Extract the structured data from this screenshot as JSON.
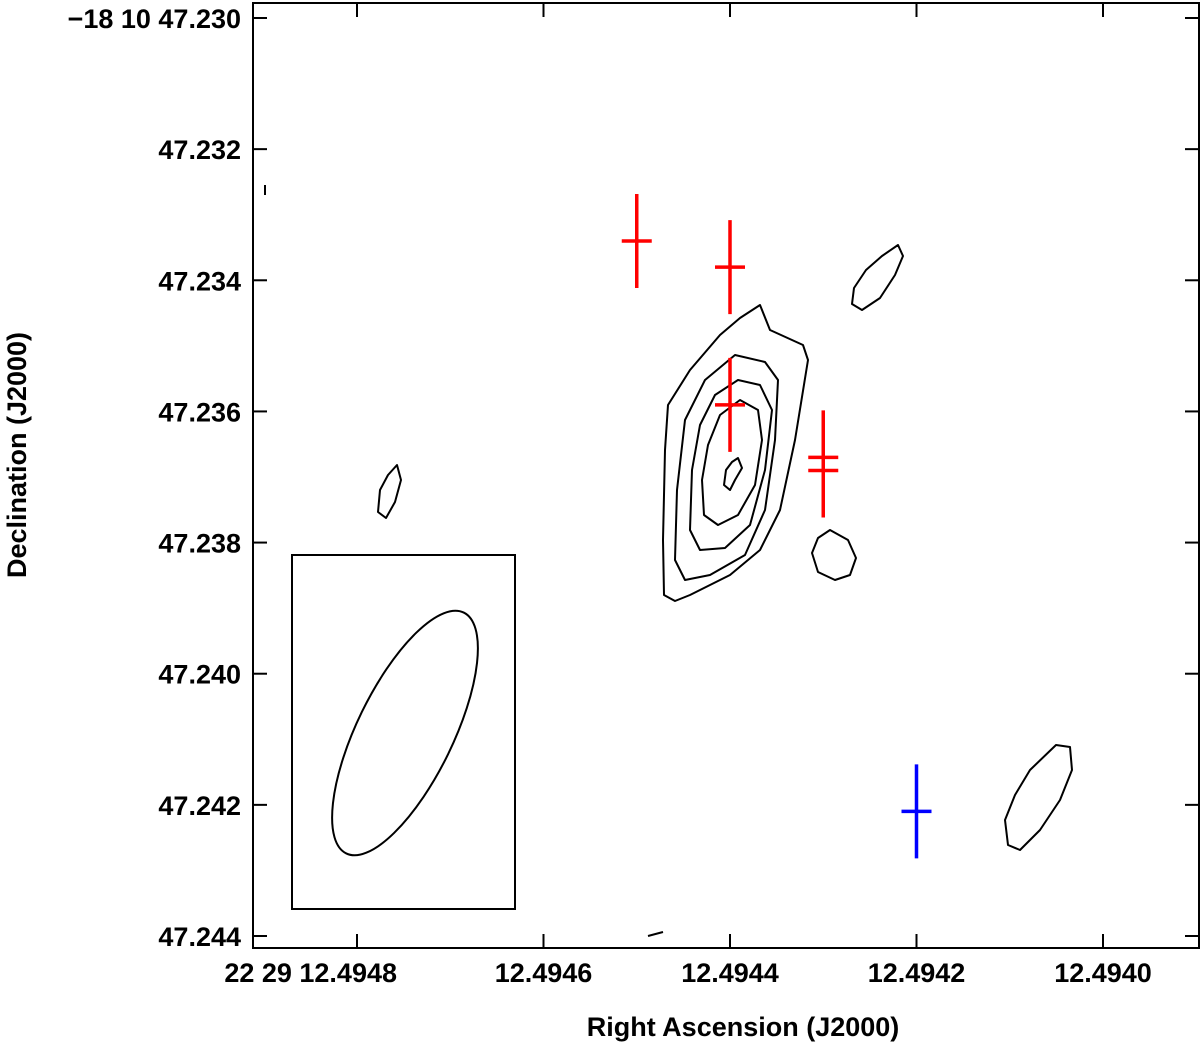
{
  "colors": {
    "red_markers": "#ff0000",
    "blue_marker": "#0000ff",
    "contours": "#000000"
  },
  "chart_data": {
    "type": "contour",
    "xlabel": "Right Ascension (J2000)",
    "ylabel": "Declination (J2000)",
    "x_ticks": [
      {
        "value": 12.4948,
        "label": "22 29 12.4948"
      },
      {
        "value": 12.4946,
        "label": "12.4946"
      },
      {
        "value": 12.4944,
        "label": "12.4944"
      },
      {
        "value": 12.4942,
        "label": "12.4942"
      },
      {
        "value": 12.494,
        "label": "12.4940"
      }
    ],
    "y_ticks": [
      {
        "value": 47.23,
        "label": "−18 10 47.230"
      },
      {
        "value": 47.232,
        "label": "47.232"
      },
      {
        "value": 47.234,
        "label": "47.234"
      },
      {
        "value": 47.236,
        "label": "47.236"
      },
      {
        "value": 47.238,
        "label": "47.238"
      },
      {
        "value": 47.24,
        "label": "47.240"
      },
      {
        "value": 47.242,
        "label": "47.242"
      },
      {
        "value": 47.244,
        "label": "47.244"
      }
    ],
    "xlim": [
      12.49492,
      12.49391
    ],
    "ylim": [
      47.2442,
      47.2298
    ],
    "x_decreasing": true,
    "grid": false,
    "markers": [
      {
        "color": "red",
        "ra": 12.4945,
        "dec": 47.2334
      },
      {
        "color": "red",
        "ra": 12.4944,
        "dec": 47.2338
      },
      {
        "color": "red",
        "ra": 12.4944,
        "dec": 47.2359
      },
      {
        "color": "red",
        "ra": 12.4943,
        "dec": 47.2367
      },
      {
        "color": "red",
        "ra": 12.4943,
        "dec": 47.2369
      },
      {
        "color": "blue",
        "ra": 12.4942,
        "dec": 47.2421
      }
    ],
    "contour_levels": 5,
    "beam": {
      "box": true,
      "shape": "ellipse"
    }
  }
}
